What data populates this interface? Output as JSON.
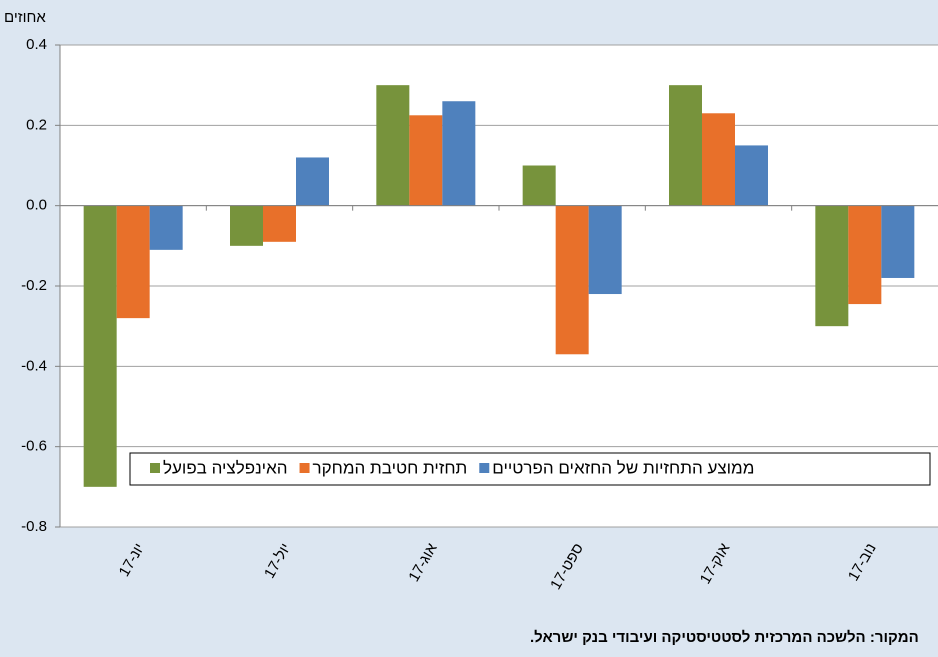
{
  "chart_data": {
    "type": "bar",
    "y_label": "אחוזים",
    "categories": [
      "יונ-17",
      "יול-17",
      "אוג-17",
      "ספט-17",
      "אוק-17",
      "נוב-17"
    ],
    "series": [
      {
        "name": "האינפלציה בפועל",
        "color": "#77933c",
        "values": [
          -0.7,
          -0.1,
          0.3,
          0.1,
          0.3,
          -0.3
        ]
      },
      {
        "name": "תחזית חטיבת המחקר",
        "color": "#e8702a",
        "values": [
          -0.28,
          -0.09,
          0.225,
          -0.37,
          0.23,
          -0.245
        ]
      },
      {
        "name": "ממוצע התחזיות של החזאים הפרטיים",
        "color": "#4f81bd",
        "values": [
          -0.11,
          0.12,
          0.26,
          -0.22,
          0.15,
          -0.18
        ]
      }
    ],
    "ylim": [
      -0.8,
      0.4
    ],
    "yticks": [
      -0.8,
      -0.6,
      -0.4,
      -0.2,
      {
        "value": 0,
        "label": "0.0"
      },
      0.2,
      0.4
    ],
    "grid": true,
    "legend": "bottom",
    "source": "המקור: הלשכה המרכזית לסטטיסטיקה ועיבודי בנק ישראל."
  }
}
